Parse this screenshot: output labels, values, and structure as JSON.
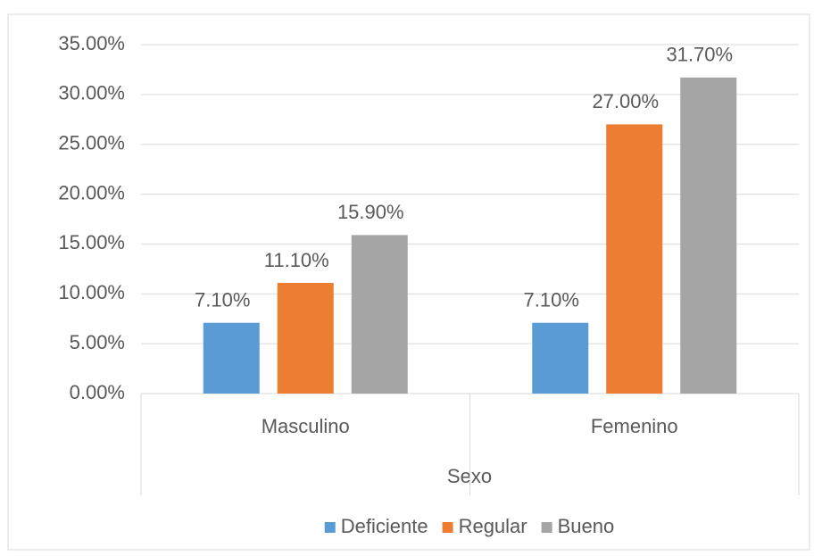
{
  "chart_data": {
    "type": "bar",
    "x_label": "Sexo",
    "categories": [
      "Masculino",
      "Femenino"
    ],
    "series": [
      {
        "name": "Deficiente",
        "color": "#5b9bd5",
        "values": [
          7.1,
          7.1
        ],
        "value_labels": [
          "7.10%",
          "7.10%"
        ]
      },
      {
        "name": "Regular",
        "color": "#ed7d31",
        "values": [
          11.1,
          27.0
        ],
        "value_labels": [
          "11.10%",
          "27.00%"
        ]
      },
      {
        "name": "Bueno",
        "color": "#a5a5a5",
        "values": [
          15.9,
          31.7
        ],
        "value_labels": [
          "15.90%",
          "31.70%"
        ]
      }
    ],
    "ylim": [
      0,
      35
    ],
    "yticks": [
      {
        "value": 0,
        "label": "0.00%"
      },
      {
        "value": 5,
        "label": "5.00%"
      },
      {
        "value": 10,
        "label": "10.00%"
      },
      {
        "value": 15,
        "label": "15.00%"
      },
      {
        "value": 20,
        "label": "20.00%"
      },
      {
        "value": 25,
        "label": "25.00%"
      },
      {
        "value": 30,
        "label": "30.00%"
      },
      {
        "value": 35,
        "label": "35.00%"
      }
    ],
    "grid": true,
    "legend": "bottom"
  }
}
